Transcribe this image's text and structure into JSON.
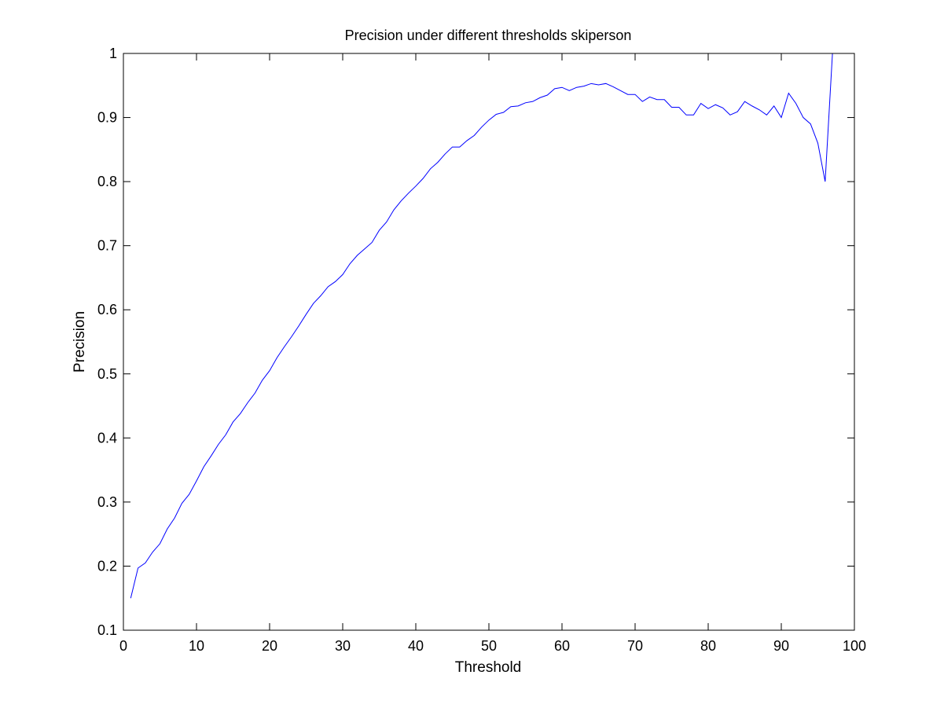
{
  "chart_data": {
    "type": "line",
    "title": "Precision under different thresholds skiperson",
    "xlabel": "Threshold",
    "ylabel": "Precision",
    "xlim": [
      0,
      100
    ],
    "ylim": [
      0.1,
      1
    ],
    "xticks": [
      0,
      10,
      20,
      30,
      40,
      50,
      60,
      70,
      80,
      90,
      100
    ],
    "yticks": [
      0.1,
      0.2,
      0.3,
      0.4,
      0.5,
      0.6,
      0.7,
      0.8,
      0.9,
      1
    ],
    "xtick_labels": [
      "0",
      "10",
      "20",
      "30",
      "40",
      "50",
      "60",
      "70",
      "80",
      "90",
      "100"
    ],
    "ytick_labels": [
      "0.1",
      "0.2",
      "0.3",
      "0.4",
      "0.5",
      "0.6",
      "0.7",
      "0.8",
      "0.9",
      "1"
    ],
    "grid": false,
    "line_color": "#0000ff",
    "series": [
      {
        "x": [
          1,
          2,
          3,
          4,
          5,
          6,
          7,
          8,
          9,
          10,
          11,
          12,
          13,
          14,
          15,
          16,
          17,
          18,
          19,
          20,
          21,
          22,
          23,
          24,
          25,
          26,
          27,
          28,
          29,
          30,
          31,
          32,
          33,
          34,
          35,
          36,
          37,
          38,
          39,
          40,
          41,
          42,
          43,
          44,
          45,
          46,
          47,
          48,
          49,
          50,
          51,
          52,
          53,
          54,
          55,
          56,
          57,
          58,
          59,
          60,
          61,
          62,
          63,
          64,
          65,
          66,
          67,
          68,
          69,
          70,
          71,
          72,
          73,
          74,
          75,
          76,
          77,
          78,
          79,
          80,
          81,
          82,
          83,
          84,
          85,
          86,
          87,
          88,
          89,
          90,
          91,
          92,
          93,
          94,
          95,
          96,
          97
        ],
        "values": [
          0.15,
          0.197,
          0.205,
          0.222,
          0.235,
          0.258,
          0.275,
          0.298,
          0.312,
          0.333,
          0.355,
          0.372,
          0.39,
          0.405,
          0.425,
          0.438,
          0.455,
          0.47,
          0.49,
          0.505,
          0.525,
          0.542,
          0.558,
          0.575,
          0.593,
          0.61,
          0.622,
          0.636,
          0.644,
          0.655,
          0.672,
          0.685,
          0.695,
          0.705,
          0.724,
          0.737,
          0.756,
          0.77,
          0.782,
          0.793,
          0.805,
          0.82,
          0.83,
          0.843,
          0.854,
          0.854,
          0.864,
          0.872,
          0.885,
          0.896,
          0.905,
          0.908,
          0.917,
          0.918,
          0.923,
          0.925,
          0.931,
          0.935,
          0.945,
          0.947,
          0.942,
          0.947,
          0.949,
          0.953,
          0.951,
          0.953,
          0.948,
          0.942,
          0.936,
          0.936,
          0.925,
          0.932,
          0.928,
          0.928,
          0.916,
          0.916,
          0.904,
          0.904,
          0.922,
          0.914,
          0.92,
          0.915,
          0.904,
          0.909,
          0.925,
          0.918,
          0.912,
          0.904,
          0.918,
          0.9,
          0.938,
          0.922,
          0.9,
          0.89,
          0.86,
          0.8,
          1.0
        ]
      }
    ]
  }
}
